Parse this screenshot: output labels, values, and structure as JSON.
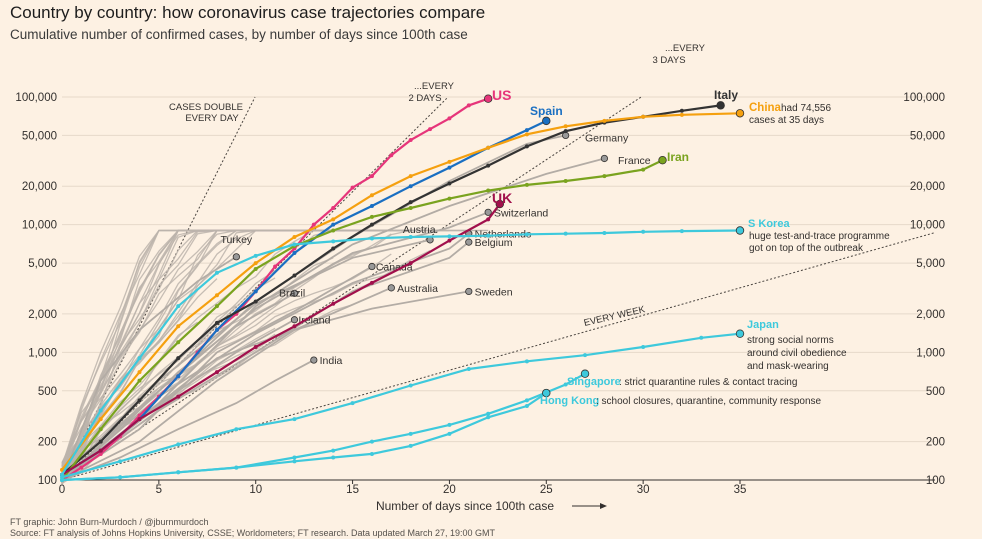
{
  "title": "Country by country: how coronavirus case trajectories compare",
  "subtitle": "Cumulative number of confirmed cases, by number of days since 100th case",
  "footer": {
    "line1": "FT graphic: John Burn-Murdoch / @jburnmurdoch",
    "line2": "Source: FT analysis of Johns Hopkins University, CSSE; Worldometers; FT research. Data updated March 27, 19:00 GMT"
  },
  "colors": {
    "background": "#fdf1e3",
    "us": "#e6357a",
    "spain": "#1a6fc2",
    "italy": "#333333",
    "china": "#f5a00f",
    "iran": "#7aa31f",
    "uk": "#a1104c",
    "cyan": "#3ec9dc",
    "grey": "#b3aca5",
    "grey_dot": "#999"
  },
  "chart_data": {
    "type": "line",
    "title": "Country by country: how coronavirus case trajectories compare",
    "xlabel": "Number of days since 100th case",
    "ylabel": "Cumulative number of confirmed cases",
    "yscale": "log",
    "xlim": [
      0,
      35
    ],
    "ylim": [
      100,
      100000
    ],
    "x_ticks": [
      0,
      5,
      10,
      15,
      20,
      25,
      30,
      35
    ],
    "y_ticks": [
      100,
      200,
      500,
      1000,
      2000,
      5000,
      10000,
      20000,
      50000,
      100000
    ],
    "y_tick_labels": [
      "100",
      "200",
      "500",
      "1,000",
      "2,000",
      "5,000",
      "10,000",
      "20,000",
      "50,000",
      "100,000"
    ],
    "reference_lines": [
      {
        "label": "CASES DOUBLE EVERY DAY",
        "doubling_days": 1
      },
      {
        "label": "...EVERY 2 DAYS",
        "doubling_days": 2
      },
      {
        "label": "...EVERY 3 DAYS",
        "doubling_days": 3
      },
      {
        "label": "EVERY WEEK",
        "doubling_days": 7
      }
    ],
    "highlighted_series": [
      {
        "name": "US",
        "color": "#e6357a",
        "values": [
          [
            0,
            100
          ],
          [
            1,
            125
          ],
          [
            2,
            160
          ],
          [
            3,
            220
          ],
          [
            4,
            320
          ],
          [
            5,
            450
          ],
          [
            6,
            650
          ],
          [
            7,
            1000
          ],
          [
            8,
            1500
          ],
          [
            9,
            2000
          ],
          [
            10,
            3000
          ],
          [
            11,
            4700
          ],
          [
            12,
            6500
          ],
          [
            13,
            10000
          ],
          [
            14,
            13500
          ],
          [
            15,
            19500
          ],
          [
            16,
            24000
          ],
          [
            17,
            35000
          ],
          [
            18,
            46000
          ],
          [
            19,
            56000
          ],
          [
            20,
            68000
          ],
          [
            21,
            86000
          ],
          [
            22,
            97000
          ]
        ]
      },
      {
        "name": "Spain",
        "color": "#1a6fc2",
        "values": [
          [
            0,
            110
          ],
          [
            2,
            170
          ],
          [
            4,
            300
          ],
          [
            6,
            650
          ],
          [
            8,
            1500
          ],
          [
            10,
            3000
          ],
          [
            12,
            6000
          ],
          [
            14,
            10000
          ],
          [
            16,
            14000
          ],
          [
            18,
            20000
          ],
          [
            20,
            28000
          ],
          [
            22,
            40000
          ],
          [
            24,
            55000
          ],
          [
            25,
            65000
          ]
        ]
      },
      {
        "name": "Italy",
        "color": "#333333",
        "values": [
          [
            0,
            110
          ],
          [
            2,
            200
          ],
          [
            4,
            420
          ],
          [
            6,
            900
          ],
          [
            8,
            1700
          ],
          [
            10,
            2500
          ],
          [
            12,
            4000
          ],
          [
            14,
            6500
          ],
          [
            16,
            10000
          ],
          [
            18,
            15000
          ],
          [
            20,
            21000
          ],
          [
            22,
            29000
          ],
          [
            24,
            41000
          ],
          [
            26,
            54000
          ],
          [
            28,
            63000
          ],
          [
            30,
            70000
          ],
          [
            32,
            78000
          ],
          [
            34,
            86000
          ]
        ]
      },
      {
        "name": "China",
        "color": "#f5a00f",
        "values": [
          [
            0,
            120
          ],
          [
            2,
            300
          ],
          [
            4,
            700
          ],
          [
            6,
            1600
          ],
          [
            8,
            2800
          ],
          [
            10,
            5000
          ],
          [
            12,
            8000
          ],
          [
            14,
            11000
          ],
          [
            16,
            17000
          ],
          [
            18,
            24000
          ],
          [
            20,
            31000
          ],
          [
            22,
            40000
          ],
          [
            24,
            51000
          ],
          [
            26,
            59000
          ],
          [
            28,
            65000
          ],
          [
            30,
            70000
          ],
          [
            32,
            72500
          ],
          [
            35,
            74556
          ]
        ]
      },
      {
        "name": "Iran",
        "color": "#7aa31f",
        "values": [
          [
            0,
            100
          ],
          [
            2,
            250
          ],
          [
            4,
            600
          ],
          [
            6,
            1200
          ],
          [
            8,
            2300
          ],
          [
            10,
            4500
          ],
          [
            12,
            6800
          ],
          [
            14,
            9000
          ],
          [
            16,
            11500
          ],
          [
            18,
            13500
          ],
          [
            20,
            16000
          ],
          [
            22,
            18500
          ],
          [
            24,
            20500
          ],
          [
            26,
            22000
          ],
          [
            28,
            24000
          ],
          [
            30,
            27000
          ],
          [
            31,
            32000
          ]
        ]
      },
      {
        "name": "UK",
        "color": "#a1104c",
        "values": [
          [
            0,
            110
          ],
          [
            2,
            170
          ],
          [
            4,
            300
          ],
          [
            6,
            450
          ],
          [
            8,
            700
          ],
          [
            10,
            1100
          ],
          [
            12,
            1600
          ],
          [
            14,
            2400
          ],
          [
            16,
            3500
          ],
          [
            18,
            5000
          ],
          [
            20,
            7500
          ],
          [
            22,
            11000
          ],
          [
            22.6,
            14500
          ]
        ]
      },
      {
        "name": "S Korea",
        "color": "#3ec9dc",
        "values": [
          [
            0,
            110
          ],
          [
            2,
            350
          ],
          [
            4,
            900
          ],
          [
            6,
            2300
          ],
          [
            8,
            4200
          ],
          [
            10,
            5700
          ],
          [
            12,
            7000
          ],
          [
            14,
            7400
          ],
          [
            16,
            7800
          ],
          [
            18,
            8000
          ],
          [
            20,
            8100
          ],
          [
            22,
            8200
          ],
          [
            24,
            8400
          ],
          [
            26,
            8500
          ],
          [
            28,
            8600
          ],
          [
            30,
            8800
          ],
          [
            32,
            8900
          ],
          [
            35,
            9000
          ]
        ]
      },
      {
        "name": "Japan",
        "color": "#3ec9dc",
        "values": [
          [
            0,
            105
          ],
          [
            3,
            140
          ],
          [
            6,
            190
          ],
          [
            9,
            250
          ],
          [
            12,
            300
          ],
          [
            15,
            400
          ],
          [
            18,
            550
          ],
          [
            21,
            740
          ],
          [
            24,
            850
          ],
          [
            27,
            950
          ],
          [
            30,
            1100
          ],
          [
            33,
            1300
          ],
          [
            35,
            1400
          ]
        ]
      },
      {
        "name": "Singapore",
        "color": "#3ec9dc",
        "values": [
          [
            0,
            100
          ],
          [
            3,
            105
          ],
          [
            6,
            115
          ],
          [
            9,
            125
          ],
          [
            12,
            150
          ],
          [
            14,
            170
          ],
          [
            16,
            200
          ],
          [
            18,
            230
          ],
          [
            20,
            270
          ],
          [
            22,
            330
          ],
          [
            24,
            420
          ],
          [
            26,
            560
          ],
          [
            27,
            680
          ]
        ]
      },
      {
        "name": "Hong Kong",
        "color": "#3ec9dc",
        "values": [
          [
            0,
            100
          ],
          [
            3,
            105
          ],
          [
            6,
            115
          ],
          [
            9,
            125
          ],
          [
            12,
            140
          ],
          [
            14,
            150
          ],
          [
            16,
            160
          ],
          [
            18,
            185
          ],
          [
            20,
            230
          ],
          [
            22,
            310
          ],
          [
            24,
            380
          ],
          [
            25,
            480
          ]
        ]
      }
    ],
    "other_series": [
      {
        "name": "Germany",
        "values": [
          [
            0,
            110
          ],
          [
            5,
            500
          ],
          [
            10,
            2500
          ],
          [
            15,
            8000
          ],
          [
            20,
            22000
          ],
          [
            24,
            43000
          ],
          [
            26,
            50000
          ]
        ]
      },
      {
        "name": "France",
        "values": [
          [
            0,
            100
          ],
          [
            5,
            400
          ],
          [
            10,
            2300
          ],
          [
            15,
            7000
          ],
          [
            20,
            14000
          ],
          [
            25,
            25000
          ],
          [
            28,
            33000
          ]
        ]
      },
      {
        "name": "Switzerland",
        "values": [
          [
            0,
            100
          ],
          [
            5,
            500
          ],
          [
            10,
            2200
          ],
          [
            15,
            6000
          ],
          [
            20,
            9500
          ],
          [
            22,
            12500
          ]
        ]
      },
      {
        "name": "Austria",
        "values": [
          [
            0,
            105
          ],
          [
            5,
            600
          ],
          [
            10,
            2400
          ],
          [
            15,
            5500
          ],
          [
            19,
            7600
          ]
        ]
      },
      {
        "name": "Netherlands",
        "values": [
          [
            0,
            100
          ],
          [
            5,
            450
          ],
          [
            10,
            1400
          ],
          [
            15,
            3500
          ],
          [
            20,
            6500
          ],
          [
            21,
            8500
          ]
        ]
      },
      {
        "name": "Belgium",
        "values": [
          [
            0,
            100
          ],
          [
            5,
            350
          ],
          [
            10,
            1000
          ],
          [
            15,
            3000
          ],
          [
            20,
            5500
          ],
          [
            21,
            7300
          ]
        ]
      },
      {
        "name": "Canada",
        "values": [
          [
            0,
            100
          ],
          [
            4,
            250
          ],
          [
            8,
            1000
          ],
          [
            12,
            2100
          ],
          [
            16,
            4700
          ]
        ]
      },
      {
        "name": "Australia",
        "values": [
          [
            0,
            100
          ],
          [
            4,
            200
          ],
          [
            8,
            600
          ],
          [
            12,
            1500
          ],
          [
            17,
            3200
          ]
        ]
      },
      {
        "name": "Sweden",
        "values": [
          [
            0,
            100
          ],
          [
            4,
            300
          ],
          [
            8,
            900
          ],
          [
            12,
            1500
          ],
          [
            16,
            2200
          ],
          [
            21,
            3000
          ]
        ]
      },
      {
        "name": "Turkey",
        "values": [
          [
            0,
            100
          ],
          [
            2,
            600
          ],
          [
            4,
            1500
          ],
          [
            7,
            3600
          ],
          [
            9,
            5600
          ]
        ]
      },
      {
        "name": "Brazil",
        "values": [
          [
            0,
            100
          ],
          [
            3,
            250
          ],
          [
            6,
            700
          ],
          [
            9,
            1600
          ],
          [
            12,
            2900
          ]
        ]
      },
      {
        "name": "Ireland",
        "values": [
          [
            0,
            100
          ],
          [
            3,
            220
          ],
          [
            6,
            500
          ],
          [
            9,
            1000
          ],
          [
            12,
            1800
          ]
        ]
      },
      {
        "name": "India",
        "values": [
          [
            0,
            100
          ],
          [
            3,
            150
          ],
          [
            6,
            250
          ],
          [
            9,
            400
          ],
          [
            11,
            600
          ],
          [
            13,
            870
          ]
        ]
      }
    ],
    "labels": [
      {
        "series": "US",
        "text": "US",
        "color": "#e6357a",
        "x": 22,
        "y": 97000
      },
      {
        "series": "Spain",
        "text": "Spain",
        "color": "#1a6fc2",
        "x": 25,
        "y": 65000
      },
      {
        "series": "Italy",
        "text": "Italy",
        "color": "#333333",
        "x": 34,
        "y": 86000
      },
      {
        "series": "China",
        "text": "China",
        "color": "#f5a00f",
        "x": 35,
        "y": 74556
      },
      {
        "series": "Iran",
        "text": "Iran",
        "color": "#7aa31f",
        "x": 31,
        "y": 32000
      },
      {
        "series": "UK",
        "text": "UK",
        "color": "#a1104c",
        "x": 22.6,
        "y": 14500
      },
      {
        "series": "S Korea",
        "text": "S Korea",
        "color": "#3ec9dc",
        "x": 35,
        "y": 9000
      },
      {
        "series": "Japan",
        "text": "Japan",
        "color": "#3ec9dc",
        "x": 35,
        "y": 1400
      },
      {
        "series": "Singapore",
        "text": "Singapore",
        "color": "#3ec9dc",
        "x": 27,
        "y": 680
      },
      {
        "series": "Hong Kong",
        "text": "Hong Kong",
        "color": "#3ec9dc",
        "x": 25,
        "y": 480
      }
    ],
    "annotations": {
      "china": "had 74,556 cases at 35 days",
      "s_korea": "huge test-and-trace programme got on top of the outbreak",
      "japan": "strong social norms around civil obedience and mask-wearing",
      "singapore": ": strict quarantine rules & contact tracing",
      "hong_kong": ": school closures, quarantine, community response"
    }
  }
}
